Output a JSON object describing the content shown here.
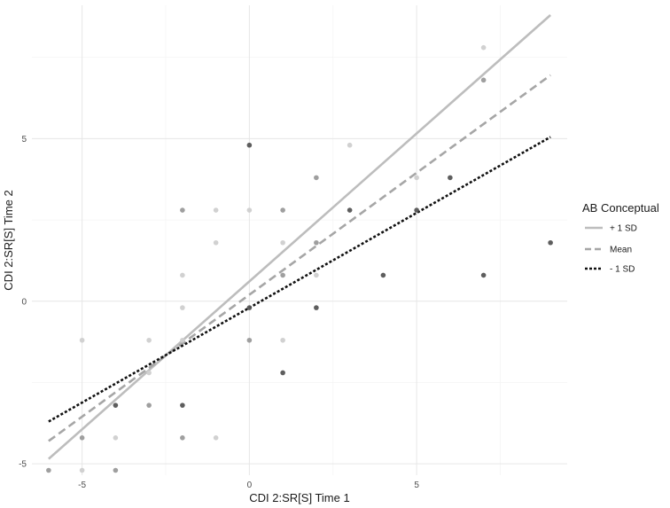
{
  "chart_data": {
    "type": "scatter",
    "xlabel": "CDI 2:SR[S] Time 1",
    "ylabel": "CDI 2:SR[S] Time 2",
    "xlim": [
      -6.5,
      9.5
    ],
    "ylim": [
      -5.35,
      9.1
    ],
    "x_ticks": [
      -5,
      0,
      5
    ],
    "y_ticks": [
      -5,
      0,
      5
    ],
    "grid": true,
    "legend": {
      "title": "AB Conceptual",
      "position": "right",
      "entries": [
        "+ 1 SD",
        "Mean",
        "- 1 SD"
      ]
    },
    "points": [
      {
        "x": -6,
        "y": -5.2,
        "shade": "mid"
      },
      {
        "x": -5,
        "y": -5.2,
        "shade": "light"
      },
      {
        "x": -5,
        "y": -4.2,
        "shade": "mid"
      },
      {
        "x": -5,
        "y": -1.2,
        "shade": "light"
      },
      {
        "x": -4,
        "y": -5.2,
        "shade": "mid"
      },
      {
        "x": -4,
        "y": -4.2,
        "shade": "light"
      },
      {
        "x": -4,
        "y": -3.2,
        "shade": "dark"
      },
      {
        "x": -3,
        "y": -3.2,
        "shade": "mid"
      },
      {
        "x": -3,
        "y": -2.2,
        "shade": "light"
      },
      {
        "x": -3,
        "y": -1.2,
        "shade": "light"
      },
      {
        "x": -2,
        "y": -4.2,
        "shade": "mid"
      },
      {
        "x": -2,
        "y": -3.2,
        "shade": "dark"
      },
      {
        "x": -2,
        "y": -1.2,
        "shade": "light"
      },
      {
        "x": -2,
        "y": -0.2,
        "shade": "light"
      },
      {
        "x": -2,
        "y": 0.8,
        "shade": "light"
      },
      {
        "x": -2,
        "y": 2.8,
        "shade": "mid"
      },
      {
        "x": -1,
        "y": -4.2,
        "shade": "light"
      },
      {
        "x": -1,
        "y": 1.8,
        "shade": "light"
      },
      {
        "x": -1,
        "y": 2.8,
        "shade": "light"
      },
      {
        "x": 0,
        "y": -1.2,
        "shade": "mid"
      },
      {
        "x": 0,
        "y": -0.2,
        "shade": "dark"
      },
      {
        "x": 0,
        "y": 2.8,
        "shade": "light"
      },
      {
        "x": 0,
        "y": 4.8,
        "shade": "dark"
      },
      {
        "x": 1,
        "y": -2.2,
        "shade": "dark"
      },
      {
        "x": 1,
        "y": -1.2,
        "shade": "light"
      },
      {
        "x": 1,
        "y": 0.8,
        "shade": "mid"
      },
      {
        "x": 1,
        "y": 1.8,
        "shade": "light"
      },
      {
        "x": 1,
        "y": 2.8,
        "shade": "mid"
      },
      {
        "x": 2,
        "y": -0.2,
        "shade": "dark"
      },
      {
        "x": 2,
        "y": 0.8,
        "shade": "light"
      },
      {
        "x": 2,
        "y": 1.8,
        "shade": "mid"
      },
      {
        "x": 2,
        "y": 3.8,
        "shade": "mid"
      },
      {
        "x": 3,
        "y": 2.8,
        "shade": "dark"
      },
      {
        "x": 3,
        "y": 4.8,
        "shade": "light"
      },
      {
        "x": 4,
        "y": 0.8,
        "shade": "dark"
      },
      {
        "x": 5,
        "y": 2.8,
        "shade": "dark"
      },
      {
        "x": 5,
        "y": 3.8,
        "shade": "light"
      },
      {
        "x": 6,
        "y": 3.8,
        "shade": "dark"
      },
      {
        "x": 7,
        "y": 0.8,
        "shade": "dark"
      },
      {
        "x": 7,
        "y": 6.8,
        "shade": "mid"
      },
      {
        "x": 7,
        "y": 7.8,
        "shade": "light"
      },
      {
        "x": 9,
        "y": 1.8,
        "shade": "dark"
      }
    ],
    "lines": [
      {
        "name": "+ 1 SD",
        "x": [
          -6,
          9
        ],
        "y": [
          -4.85,
          8.8
        ],
        "color": "#bdbdbd",
        "dash": "solid"
      },
      {
        "name": "Mean",
        "x": [
          -6,
          9
        ],
        "y": [
          -4.3,
          6.95
        ],
        "color": "#a6a6a6",
        "dash": "dashed"
      },
      {
        "name": "- 1 SD",
        "x": [
          -6,
          9
        ],
        "y": [
          -3.7,
          5.05
        ],
        "color": "#111111",
        "dash": "dotted"
      }
    ],
    "shades": {
      "light": "#cfcfcf",
      "mid": "#9a9a9a",
      "dark": "#555555"
    }
  }
}
